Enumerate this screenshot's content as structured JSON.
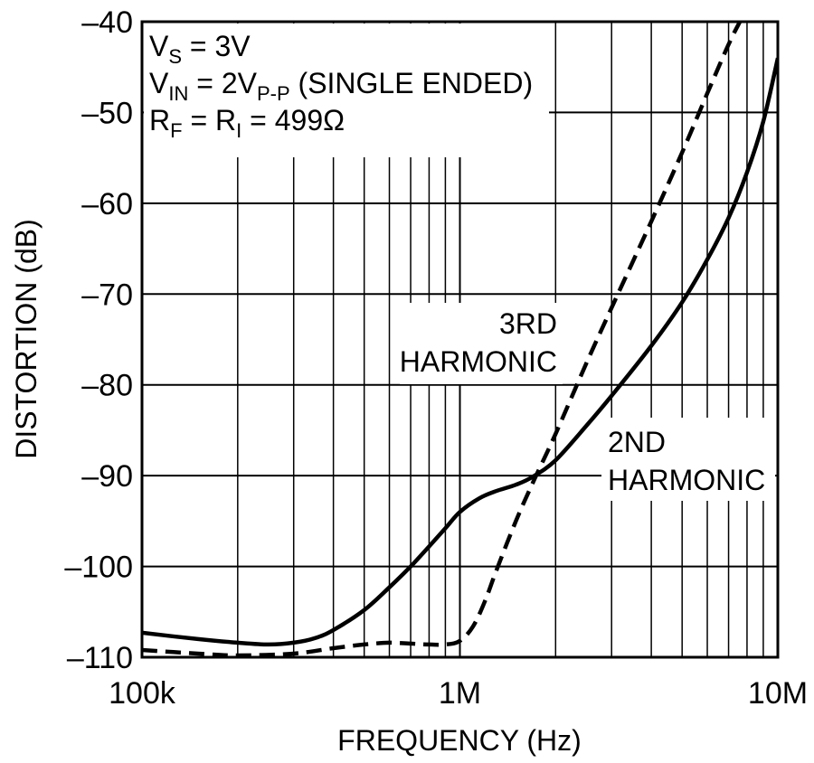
{
  "chart_data": {
    "type": "line",
    "title": "",
    "xlabel": "FREQUENCY (Hz)",
    "ylabel": "DISTORTION (dB)",
    "x_scale": "log",
    "xlim": [
      100000,
      10000000
    ],
    "ylim": [
      -110,
      -40
    ],
    "grid": true,
    "x_ticks": [
      {
        "value": 100000,
        "label": "100k"
      },
      {
        "value": 1000000,
        "label": "1M"
      },
      {
        "value": 10000000,
        "label": "10M"
      }
    ],
    "y_ticks": [
      {
        "value": -40,
        "label": "–40"
      },
      {
        "value": -50,
        "label": "–50"
      },
      {
        "value": -60,
        "label": "–60"
      },
      {
        "value": -70,
        "label": "–70"
      },
      {
        "value": -80,
        "label": "–80"
      },
      {
        "value": -90,
        "label": "–90"
      },
      {
        "value": -100,
        "label": "–100"
      },
      {
        "value": -110,
        "label": "–110"
      }
    ],
    "conditions": [
      {
        "main": "V",
        "sub": "S",
        "rest": " = 3V"
      },
      {
        "main": "V",
        "sub": "IN",
        "rest": " = 2V",
        "sub2": "P-P",
        "rest2": " (SINGLE ENDED)"
      },
      {
        "main": "R",
        "sub": "F",
        "rest": " = R",
        "sub2": "I",
        "rest2": " = 499Ω"
      }
    ],
    "series": [
      {
        "name": "2ND HARMONIC",
        "style": "solid",
        "label_lines": [
          "2ND",
          "HARMONIC"
        ],
        "points": [
          [
            100000,
            -107.3
          ],
          [
            150000,
            -108.0
          ],
          [
            200000,
            -108.4
          ],
          [
            250000,
            -108.6
          ],
          [
            300000,
            -108.4
          ],
          [
            350000,
            -107.9
          ],
          [
            400000,
            -107.0
          ],
          [
            500000,
            -104.8
          ],
          [
            600000,
            -102.3
          ],
          [
            700000,
            -100.0
          ],
          [
            800000,
            -97.8
          ],
          [
            900000,
            -95.8
          ],
          [
            1000000,
            -94.0
          ],
          [
            1150000,
            -92.5
          ],
          [
            1300000,
            -91.7
          ],
          [
            1500000,
            -91.0
          ],
          [
            1700000,
            -90.1
          ],
          [
            2000000,
            -88.3
          ],
          [
            2500000,
            -84.5
          ],
          [
            3000000,
            -81.2
          ],
          [
            4000000,
            -75.7
          ],
          [
            5000000,
            -70.9
          ],
          [
            6000000,
            -66.2
          ],
          [
            7000000,
            -61.6
          ],
          [
            8000000,
            -56.6
          ],
          [
            9000000,
            -51.0
          ],
          [
            10000000,
            -44.0
          ]
        ]
      },
      {
        "name": "3RD HARMONIC",
        "style": "dashed",
        "label_lines": [
          "3RD",
          "HARMONIC"
        ],
        "points": [
          [
            100000,
            -109.2
          ],
          [
            150000,
            -109.6
          ],
          [
            200000,
            -109.8
          ],
          [
            300000,
            -109.6
          ],
          [
            400000,
            -109.0
          ],
          [
            500000,
            -108.6
          ],
          [
            600000,
            -108.4
          ],
          [
            700000,
            -108.5
          ],
          [
            800000,
            -108.6
          ],
          [
            900000,
            -108.6
          ],
          [
            1000000,
            -108.2
          ],
          [
            1100000,
            -106.6
          ],
          [
            1200000,
            -103.8
          ],
          [
            1300000,
            -100.5
          ],
          [
            1500000,
            -95.0
          ],
          [
            1700000,
            -90.7
          ],
          [
            2000000,
            -85.4
          ],
          [
            2500000,
            -77.6
          ],
          [
            3000000,
            -71.5
          ],
          [
            4000000,
            -62.0
          ],
          [
            5000000,
            -54.4
          ],
          [
            6000000,
            -47.9
          ],
          [
            7000000,
            -42.5
          ],
          [
            7600000,
            -40.0
          ]
        ]
      }
    ]
  }
}
